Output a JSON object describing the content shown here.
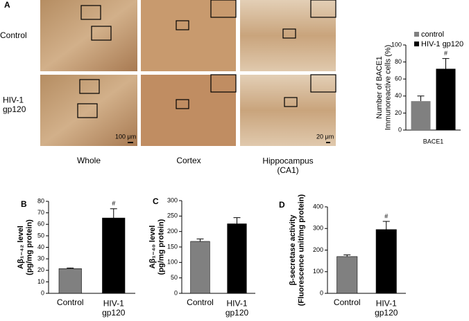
{
  "panel_a": {
    "letter": "A",
    "rows": [
      "Control",
      "HIV-1 gp120"
    ],
    "columns": [
      "Whole",
      "Cortex",
      "Hippocampus (CA1)"
    ],
    "scale_bars": [
      "100 μm",
      "20 μm"
    ]
  },
  "chart_data": [
    {
      "type": "bar",
      "ylabel": "Number of BACE1 Immunoreactive cells (%)",
      "categories": [
        "BACE1"
      ],
      "series": [
        {
          "name": "control",
          "color": "#808080",
          "values": [
            34
          ],
          "errors": [
            6
          ]
        },
        {
          "name": "HIV-1 gp120",
          "color": "#000000",
          "values": [
            72
          ],
          "errors": [
            12
          ]
        }
      ],
      "annotations": [
        "#"
      ],
      "ylim": [
        0,
        100
      ],
      "yticks": [
        0,
        20,
        40,
        60,
        80,
        100
      ],
      "legend": "top"
    },
    {
      "type": "bar",
      "letter": "B",
      "ylabel": "Aβ₁₋₄₂ level (pg/mg protein)",
      "categories": [
        "Control",
        "HIV-1 gp120"
      ],
      "values": [
        21.5,
        65.5
      ],
      "errors": [
        0.5,
        8
      ],
      "colors": [
        "#808080",
        "#000000"
      ],
      "annotations": [
        null,
        "#"
      ],
      "ylim": [
        0,
        80
      ],
      "yticks": [
        0,
        10,
        20,
        30,
        40,
        50,
        60,
        70,
        80
      ]
    },
    {
      "type": "bar",
      "letter": "C",
      "ylabel": "Aβ₁₋₄₀ level (pg/mg protein)",
      "categories": [
        "Control",
        "HIV-1 gp120"
      ],
      "values": [
        168,
        225
      ],
      "errors": [
        8,
        20
      ],
      "colors": [
        "#808080",
        "#000000"
      ],
      "ylim": [
        0,
        300
      ],
      "yticks": [
        0,
        50,
        100,
        150,
        200,
        250,
        300
      ]
    },
    {
      "type": "bar",
      "letter": "D",
      "ylabel": "β-secretase activity (Fluorescence unit/mg protein)",
      "categories": [
        "Control",
        "HIV-1 gp120"
      ],
      "values": [
        170,
        295
      ],
      "errors": [
        8,
        38
      ],
      "colors": [
        "#808080",
        "#000000"
      ],
      "annotations": [
        null,
        "#"
      ],
      "ylim": [
        0,
        400
      ],
      "yticks": [
        0,
        100,
        200,
        300,
        400
      ]
    }
  ]
}
